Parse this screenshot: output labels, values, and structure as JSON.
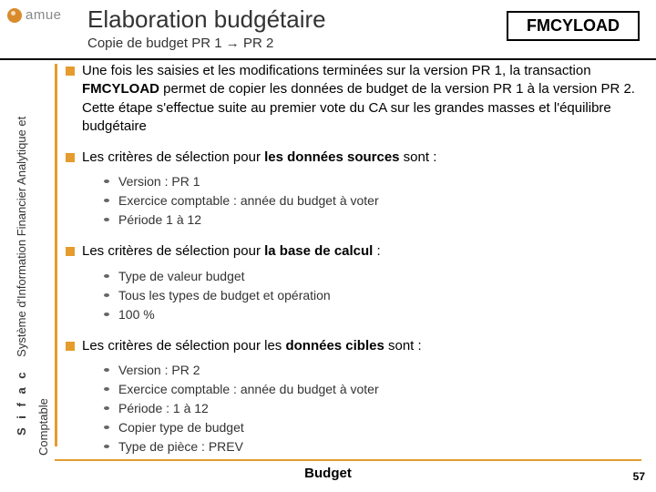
{
  "header": {
    "title": "Elaboration budgétaire",
    "subtitle": "Copie de budget PR 1 → PR 2",
    "badge": "FMCYLOAD"
  },
  "logo": {
    "text": "amue"
  },
  "side": {
    "brand": "S i f a c",
    "line1": "Système d'Information Financier Analytique et",
    "line2": "Comptable"
  },
  "intro_parts": {
    "p1": "Une fois les saisies et les modifications terminées sur la version PR 1, la transaction ",
    "bold": "FMCYLOAD",
    "p2": " permet de copier les données de budget de la version PR 1 à la version PR 2.",
    "p3": "Cette étape s'effectue suite au premier vote du CA sur les grandes masses et l'équilibre budgétaire"
  },
  "sections": [
    {
      "lead_pre": "Les critères de sélection pour ",
      "lead_bold": "les données sources",
      "lead_post": " sont :",
      "items": [
        "Version : PR 1",
        "Exercice comptable : année du budget à voter",
        "Période 1 à 12"
      ]
    },
    {
      "lead_pre": "Les critères de sélection pour ",
      "lead_bold": "la base de calcul",
      "lead_post": " :",
      "items": [
        "Type de valeur budget",
        "Tous les types de budget et opération",
        "100 %"
      ]
    },
    {
      "lead_pre": "Les critères de sélection pour les ",
      "lead_bold": "données cibles",
      "lead_post": " sont :",
      "items": [
        "Version : PR 2",
        "Exercice comptable : année du budget à voter",
        "Période : 1 à 12",
        "Copier type de budget",
        "Type de pièce : PREV"
      ]
    }
  ],
  "footer": {
    "label": "Budget",
    "page": "57"
  },
  "colors": {
    "accent": "#e69b2d",
    "rule": "#000000"
  }
}
